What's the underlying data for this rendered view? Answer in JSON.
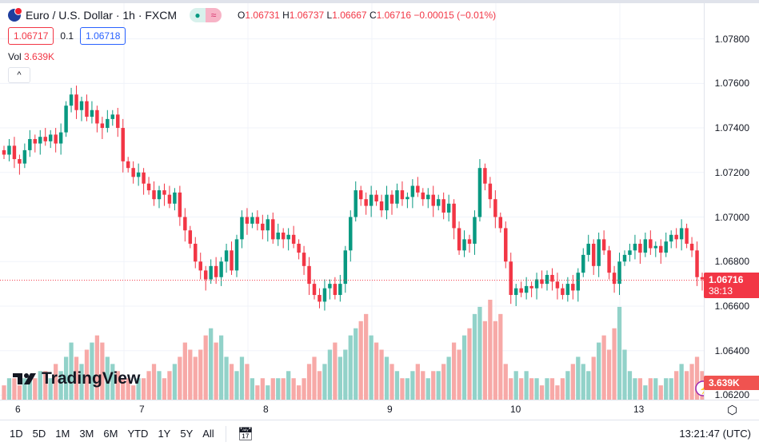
{
  "header": {
    "symbol": "Euro / U.S. Dollar · 1h · FXCM",
    "flag_icon": "eu-us-flag-icon",
    "o_label": "O",
    "o": "1.06731",
    "h_label": "H",
    "h": "1.06737",
    "l_label": "L",
    "l": "1.06667",
    "c_label": "C",
    "c": "1.06716",
    "change": "−0.00015 (−0.01%)",
    "sell": "1.06717",
    "spread": "0.1",
    "buy": "1.06718",
    "vol_label": "Vol",
    "vol": "3.639K"
  },
  "logo": "TradingView",
  "price_axis": {
    "ticks": [
      "1.07800",
      "1.07600",
      "1.07400",
      "1.07200",
      "1.07000",
      "1.06800",
      "1.06600",
      "1.06400",
      "1.06200"
    ],
    "last_price": "1.06716",
    "countdown": "38:13",
    "last_volume": "3.639K"
  },
  "time_axis": [
    "6",
    "7",
    "8",
    "9",
    "10",
    "13"
  ],
  "bottom": {
    "ranges": [
      "1D",
      "5D",
      "1M",
      "3M",
      "6M",
      "YTD",
      "1Y",
      "5Y",
      "All"
    ],
    "clock": "13:21:47 (UTC)"
  },
  "colors": {
    "up": "#089981",
    "down": "#f23645",
    "up_vol": "#92d2c9",
    "down_vol": "#f7a9a7"
  },
  "chart_data": {
    "type": "candlestick",
    "ylim": [
      1.0618,
      1.0796
    ],
    "closes": [
      1.0728,
      1.0732,
      1.0726,
      1.0724,
      1.073,
      1.0735,
      1.0733,
      1.0736,
      1.0734,
      1.0737,
      1.0733,
      1.0738,
      1.075,
      1.0755,
      1.0748,
      1.0752,
      1.0745,
      1.0748,
      1.0742,
      1.074,
      1.0744,
      1.0746,
      1.074,
      1.0725,
      1.0722,
      1.0718,
      1.072,
      1.0715,
      1.0712,
      1.0708,
      1.0712,
      1.071,
      1.0706,
      1.0711,
      1.07,
      1.0694,
      1.0688,
      1.068,
      1.0676,
      1.0672,
      1.0678,
      1.0673,
      1.068,
      1.0685,
      1.0676,
      1.069,
      1.07,
      1.0697,
      1.07,
      1.0697,
      1.0694,
      1.0699,
      1.069,
      1.0693,
      1.069,
      1.0692,
      1.0688,
      1.0684,
      1.0678,
      1.067,
      1.0665,
      1.0662,
      1.0668,
      1.067,
      1.0665,
      1.067,
      1.0685,
      1.07,
      1.0712,
      1.0708,
      1.0705,
      1.071,
      1.0707,
      1.0703,
      1.071,
      1.0706,
      1.0712,
      1.0708,
      1.0709,
      1.0714,
      1.0711,
      1.0708,
      1.071,
      1.0705,
      1.0708,
      1.0702,
      1.0706,
      1.0695,
      1.0685,
      1.069,
      1.0688,
      1.07,
      1.0722,
      1.0715,
      1.0708,
      1.07,
      1.0695,
      1.068,
      1.0665,
      1.0668,
      1.0666,
      1.0669,
      1.0668,
      1.0672,
      1.067,
      1.0674,
      1.0671,
      1.0668,
      1.0665,
      1.067,
      1.0667,
      1.0675,
      1.0683,
      1.0688,
      1.0678,
      1.069,
      1.0685,
      1.0675,
      1.067,
      1.068,
      1.0683,
      1.0685,
      1.0688,
      1.0684,
      1.069,
      1.0686,
      1.0687,
      1.0684,
      1.0689,
      1.0692,
      1.069,
      1.0695,
      1.0688,
      1.0685,
      1.0673,
      1.0672
    ],
    "volumes": [
      2,
      3,
      3,
      2,
      3,
      3,
      3,
      4,
      4,
      3,
      5,
      4,
      6,
      8,
      6,
      5,
      7,
      8,
      9,
      8,
      6,
      5,
      4,
      3,
      3,
      2,
      3,
      3,
      4,
      5,
      4,
      3,
      4,
      5,
      6,
      8,
      7,
      6,
      7,
      9,
      10,
      8,
      9,
      6,
      5,
      4,
      6,
      5,
      3,
      2,
      3,
      2,
      3,
      3,
      3,
      4,
      3,
      2,
      3,
      5,
      6,
      4,
      5,
      7,
      8,
      6,
      7,
      9,
      10,
      11,
      12,
      9,
      8,
      7,
      6,
      5,
      4,
      3,
      3,
      4,
      5,
      4,
      3,
      4,
      4,
      5,
      6,
      8,
      7,
      9,
      10,
      12,
      13,
      11,
      14,
      11,
      12,
      5,
      3,
      4,
      3,
      4,
      3,
      3,
      2,
      3,
      3,
      2,
      3,
      4,
      5,
      6,
      5,
      4,
      6,
      8,
      9,
      7,
      10,
      13,
      7,
      4,
      3,
      3,
      2,
      3,
      3,
      2,
      3,
      3,
      4,
      5,
      4,
      5,
      6,
      4
    ]
  }
}
